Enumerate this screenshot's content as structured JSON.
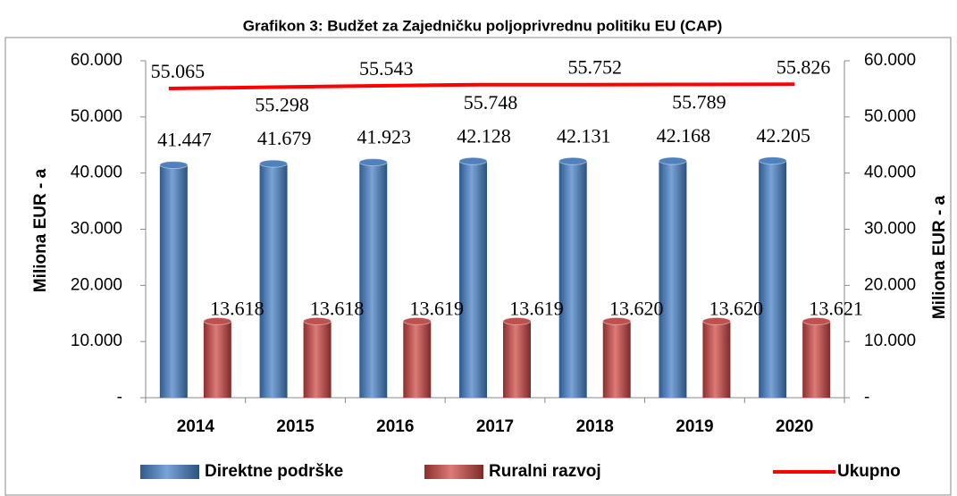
{
  "chart_data": {
    "type": "bar",
    "title": "Grafikon 3: Budžet za Zajedničku poljoprivrednu politiku EU (CAP)",
    "y_label": "Miliona EUR - a",
    "y2_label": "Miliona EUR - a",
    "categories": [
      "2014",
      "2015",
      "2016",
      "2017",
      "2018",
      "2019",
      "2020"
    ],
    "series": [
      {
        "name": "Direktne podrške",
        "color": "#4f81bd",
        "type": "bar",
        "values": [
          41447,
          41679,
          41923,
          42128,
          42131,
          42168,
          42205
        ],
        "value_labels": [
          "41.447",
          "41.679",
          "41.923",
          "42.128",
          "42.131",
          "42.168",
          "42.205"
        ]
      },
      {
        "name": "Ruralni razvoj",
        "color": "#c0504d",
        "type": "bar",
        "values": [
          13618,
          13618,
          13619,
          13619,
          13620,
          13620,
          13621
        ],
        "value_labels": [
          "13.618",
          "13.618",
          "13.619",
          "13.619",
          "13.620",
          "13.620",
          "13.621"
        ]
      },
      {
        "name": "Ukupno",
        "color": "#ff0000",
        "type": "line",
        "axis": "y2",
        "values": [
          55065,
          55298,
          55543,
          55748,
          55752,
          55789,
          55826
        ],
        "value_labels": [
          "55.065",
          "55.298",
          "55.543",
          "55.748",
          "55.752",
          "55.789",
          "55.826"
        ]
      }
    ],
    "ylim": [
      0,
      60000
    ],
    "yticks": [
      {
        "value": 0,
        "label": "-"
      },
      {
        "value": 10000,
        "label": "10.000"
      },
      {
        "value": 20000,
        "label": "20.000"
      },
      {
        "value": 30000,
        "label": "30.000"
      },
      {
        "value": 40000,
        "label": "40.000"
      },
      {
        "value": 50000,
        "label": "50.000"
      },
      {
        "value": 60000,
        "label": "60.000"
      }
    ],
    "y2lim": [
      0,
      60000
    ],
    "y2ticks": [
      {
        "value": 0,
        "label": "-"
      },
      {
        "value": 10000,
        "label": "10.000"
      },
      {
        "value": 20000,
        "label": "20.000"
      },
      {
        "value": 30000,
        "label": "30.000"
      },
      {
        "value": 40000,
        "label": "40.000"
      },
      {
        "value": 50000,
        "label": "50.000"
      },
      {
        "value": 60000,
        "label": "60.000"
      }
    ],
    "legend": "bottom"
  }
}
